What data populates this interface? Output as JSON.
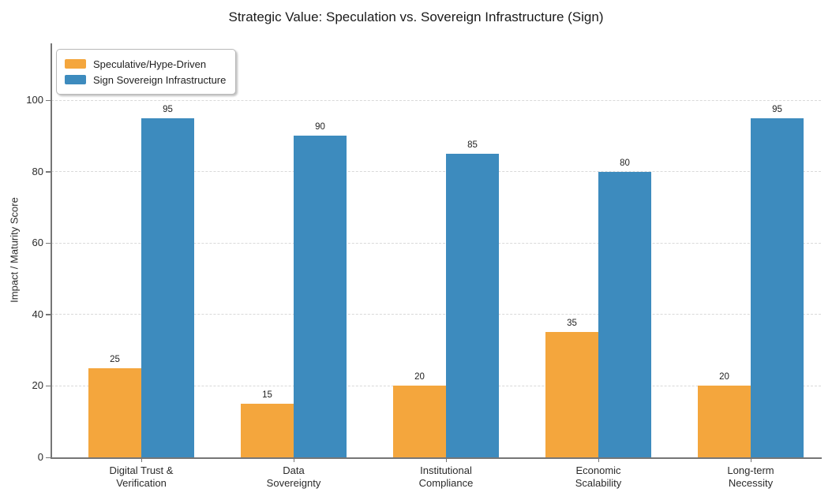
{
  "chart_data": {
    "type": "bar",
    "title": "Strategic Value: Speculation vs. Sovereign Infrastructure (Sign)",
    "xlabel": "",
    "ylabel": "Impact / Maturity Score",
    "ylim": [
      0,
      100
    ],
    "yticks": [
      0,
      20,
      40,
      60,
      80,
      100
    ],
    "grid": "horizontal-dashed",
    "legend_position": "upper-left",
    "categories": [
      "Digital Trust &\nVerification",
      "Data\nSovereignty",
      "Institutional\nCompliance",
      "Economic\nScalability",
      "Long-term\nNecessity"
    ],
    "series": [
      {
        "name": "Speculative/Hype-Driven",
        "color": "#F4A63D",
        "values": [
          25,
          15,
          20,
          35,
          20
        ]
      },
      {
        "name": "Sign Sovereign Infrastructure",
        "color": "#3D8BBE",
        "values": [
          95,
          90,
          85,
          80,
          95
        ]
      }
    ]
  }
}
